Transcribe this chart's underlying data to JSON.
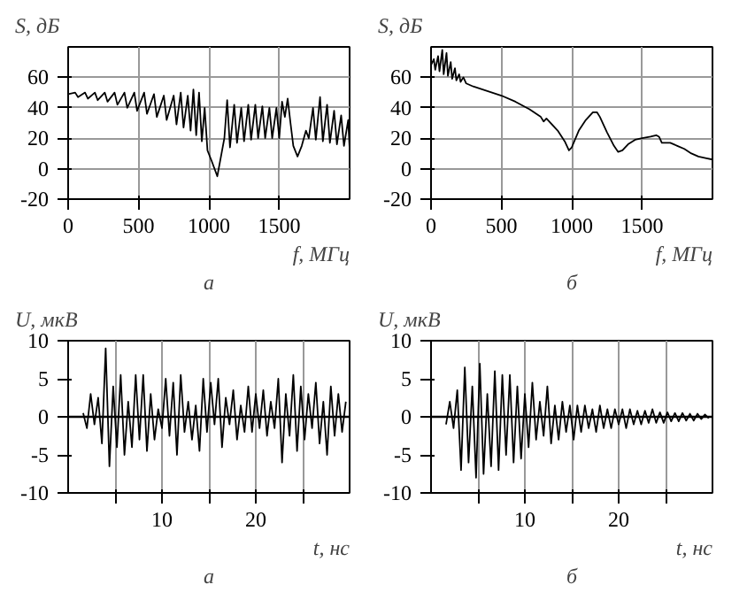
{
  "chart_data": [
    {
      "type": "line",
      "title": "а",
      "xlabel": "f, МГц",
      "ylabel": "S, дБ",
      "xlim": [
        0,
        2000
      ],
      "ylim": [
        -20,
        80
      ],
      "xticks": [
        0,
        500,
        1000,
        1500
      ],
      "yticks": [
        -20,
        0,
        20,
        40,
        60
      ],
      "grid": true,
      "series": [
        {
          "color": "#000000",
          "x": [
            0,
            50,
            70,
            120,
            140,
            190,
            210,
            260,
            280,
            330,
            350,
            400,
            420,
            470,
            490,
            540,
            560,
            610,
            630,
            680,
            700,
            750,
            770,
            800,
            820,
            850,
            870,
            890,
            910,
            930,
            950,
            970,
            990,
            1020,
            1060,
            1090,
            1110,
            1130,
            1150,
            1180,
            1200,
            1230,
            1250,
            1280,
            1300,
            1330,
            1350,
            1380,
            1400,
            1430,
            1450,
            1480,
            1500,
            1520,
            1540,
            1560,
            1580,
            1600,
            1630,
            1660,
            1690,
            1710,
            1740,
            1760,
            1790,
            1810,
            1840,
            1860,
            1890,
            1910,
            1940,
            1960,
            1990,
            2000
          ],
          "values": [
            49,
            50,
            47,
            50,
            46,
            50,
            45,
            50,
            44,
            50,
            42,
            50,
            40,
            50,
            38,
            50,
            36,
            49,
            34,
            48,
            32,
            48,
            29,
            50,
            27,
            48,
            25,
            52,
            22,
            50,
            18,
            40,
            12,
            5,
            -5,
            10,
            20,
            45,
            14,
            42,
            17,
            40,
            18,
            42,
            19,
            42,
            20,
            41,
            20,
            40,
            20,
            40,
            20,
            44,
            34,
            46,
            30,
            15,
            8,
            15,
            25,
            20,
            40,
            19,
            47,
            18,
            42,
            17,
            38,
            16,
            35,
            15,
            32,
            13
          ]
        }
      ]
    },
    {
      "type": "line",
      "title": "б",
      "xlabel": "f, МГц",
      "ylabel": "S, дБ",
      "xlim": [
        0,
        2000
      ],
      "ylim": [
        -20,
        80
      ],
      "xticks": [
        0,
        500,
        1000,
        1500
      ],
      "yticks": [
        -20,
        0,
        20,
        40,
        60
      ],
      "grid": true,
      "series": [
        {
          "color": "#000000",
          "x": [
            0,
            20,
            30,
            50,
            60,
            80,
            90,
            110,
            120,
            140,
            150,
            170,
            180,
            200,
            210,
            230,
            250,
            300,
            400,
            500,
            600,
            700,
            780,
            800,
            820,
            900,
            950,
            980,
            1000,
            1050,
            1100,
            1150,
            1180,
            1200,
            1250,
            1300,
            1330,
            1360,
            1400,
            1450,
            1500,
            1560,
            1600,
            1620,
            1640,
            1700,
            1750,
            1800,
            1850,
            1900,
            1950,
            2000
          ],
          "values": [
            68,
            72,
            65,
            74,
            64,
            78,
            62,
            76,
            61,
            70,
            59,
            66,
            58,
            62,
            57,
            60,
            56,
            54,
            51,
            48,
            44,
            39,
            34,
            31,
            33,
            25,
            18,
            12,
            14,
            25,
            32,
            37,
            37,
            34,
            24,
            15,
            11,
            12,
            16,
            19,
            20,
            21,
            22,
            21,
            17,
            17,
            15,
            13,
            10,
            8,
            7,
            6
          ]
        }
      ]
    },
    {
      "type": "line",
      "title": "а",
      "xlabel": "t, нс",
      "ylabel": "U, мкВ",
      "xlim": [
        0,
        30
      ],
      "ylim": [
        -10,
        10
      ],
      "xticks": [
        {
          "value": 5,
          "label": null
        },
        10,
        {
          "value": 15,
          "label": null
        },
        20,
        {
          "value": 25,
          "label": null
        }
      ],
      "yticks": [
        -10,
        -5,
        0,
        5,
        10
      ],
      "grid": "x",
      "ref_lines": [
        {
          "axis": "y",
          "value": 0,
          "color": "#000000"
        }
      ],
      "series": [
        {
          "color": "#000000",
          "x": [
            1.6,
            2.0,
            2.4,
            2.8,
            3.2,
            3.6,
            4.0,
            4.4,
            4.8,
            5.2,
            5.6,
            6.0,
            6.4,
            6.8,
            7.2,
            7.6,
            8.0,
            8.4,
            8.8,
            9.2,
            9.6,
            10.0,
            10.4,
            10.8,
            11.2,
            11.6,
            12.0,
            12.4,
            12.8,
            13.2,
            13.6,
            14.0,
            14.4,
            14.8,
            15.2,
            15.6,
            16.0,
            16.4,
            16.8,
            17.2,
            17.6,
            18.0,
            18.4,
            18.8,
            19.2,
            19.6,
            20.0,
            20.4,
            20.8,
            21.2,
            21.6,
            22.0,
            22.4,
            22.8,
            23.2,
            23.6,
            24.0,
            24.4,
            24.8,
            25.2,
            25.6,
            26.0,
            26.4,
            26.8,
            27.2,
            27.6,
            28.0,
            28.4,
            28.8,
            29.2,
            29.6
          ],
          "values": [
            0.5,
            -1.5,
            3,
            -1,
            2.5,
            -3.5,
            9,
            -6.5,
            4,
            -4,
            5.5,
            -5,
            2,
            -4,
            5.5,
            -3,
            5.5,
            -4.5,
            3,
            -3,
            1,
            -1.5,
            5,
            -2.5,
            4.5,
            -5,
            5.5,
            -2,
            2,
            -3,
            1.5,
            -4.5,
            5,
            -2,
            4.5,
            -1,
            5,
            -4,
            2.5,
            -1,
            3.5,
            -3,
            1.5,
            -2,
            4,
            -2,
            3,
            -1.5,
            3.5,
            -2.5,
            2,
            -1.5,
            5,
            -6,
            3,
            -2.5,
            5.5,
            -4.5,
            4,
            -3,
            3,
            -1.5,
            4.5,
            -3.5,
            2,
            -5,
            4,
            -2.5,
            3,
            -2,
            2
          ]
        }
      ]
    },
    {
      "type": "line",
      "title": "б",
      "xlabel": "t, нс",
      "ylabel": "U, мкВ",
      "xlim": [
        0,
        30
      ],
      "ylim": [
        -10,
        10
      ],
      "xticks": [
        {
          "value": 5,
          "label": null
        },
        10,
        {
          "value": 15,
          "label": null
        },
        20,
        {
          "value": 25,
          "label": null
        }
      ],
      "yticks": [
        -10,
        -5,
        0,
        5,
        10
      ],
      "grid": "x",
      "ref_lines": [
        {
          "axis": "y",
          "value": 0,
          "color": "#000000"
        }
      ],
      "series": [
        {
          "color": "#000000",
          "x": [
            1.6,
            2.0,
            2.4,
            2.8,
            3.2,
            3.6,
            4.0,
            4.4,
            4.8,
            5.2,
            5.6,
            6.0,
            6.4,
            6.8,
            7.2,
            7.6,
            8.0,
            8.4,
            8.8,
            9.2,
            9.6,
            10.0,
            10.4,
            10.8,
            11.2,
            11.6,
            12.0,
            12.4,
            12.8,
            13.2,
            13.6,
            14.0,
            14.4,
            14.8,
            15.2,
            15.6,
            16.0,
            16.4,
            16.8,
            17.2,
            17.6,
            18.0,
            18.4,
            18.8,
            19.2,
            19.6,
            20.0,
            20.4,
            20.8,
            21.2,
            21.6,
            22.0,
            22.4,
            22.8,
            23.2,
            23.6,
            24.0,
            24.4,
            24.8,
            25.2,
            25.6,
            26.0,
            26.4,
            26.8,
            27.2,
            27.6,
            28.0,
            28.4,
            28.8,
            29.2,
            29.6
          ],
          "values": [
            -1,
            2,
            -1.5,
            3.5,
            -7,
            6.5,
            -6,
            4,
            -8,
            7,
            -7.5,
            3,
            -6.5,
            6,
            -7,
            5.5,
            -5,
            5.5,
            -6,
            4,
            -5.5,
            3,
            -4,
            4.5,
            -3,
            2,
            -2.5,
            4,
            -3.5,
            1.5,
            -3,
            2,
            -2,
            1.5,
            -3,
            1.5,
            -2,
            1.5,
            -1.5,
            1,
            -2,
            1.5,
            -1.5,
            1,
            -1.5,
            1,
            -1,
            1,
            -1.5,
            1,
            -1,
            0.8,
            -1,
            0.8,
            -0.8,
            1,
            -0.8,
            0.6,
            -0.8,
            0.6,
            -0.6,
            0.5,
            -0.6,
            0.5,
            -0.5,
            0.4,
            -0.5,
            0.4,
            -0.3,
            0.3,
            -0.2
          ]
        }
      ]
    }
  ]
}
